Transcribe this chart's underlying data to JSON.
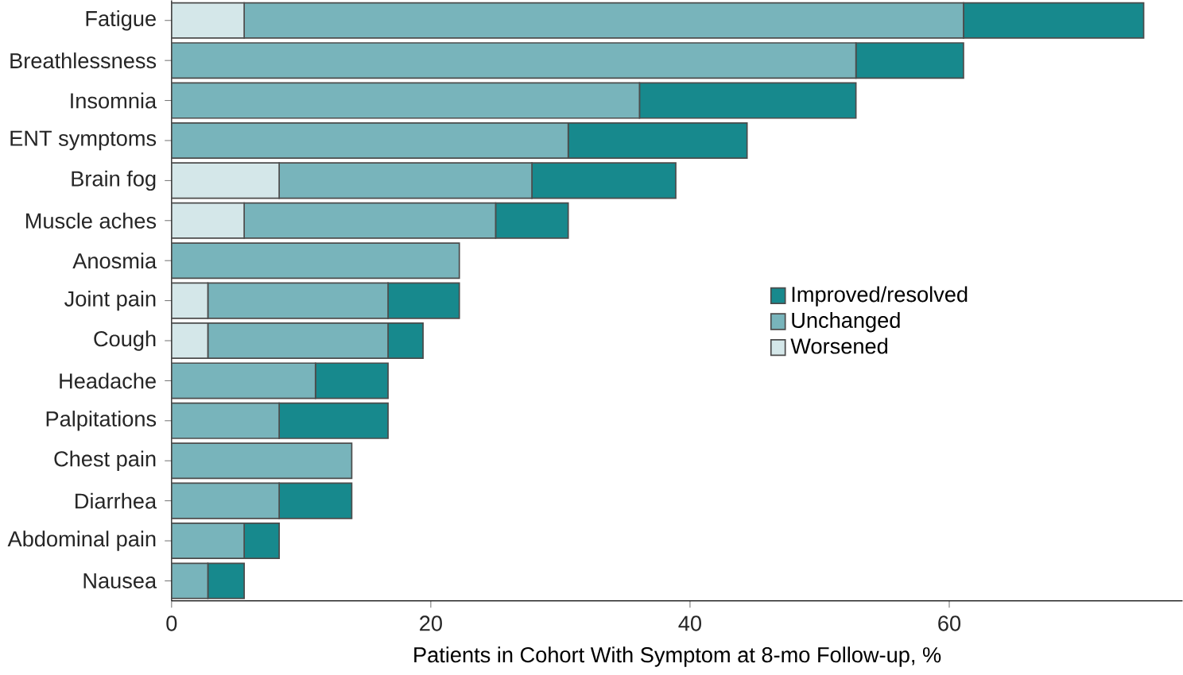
{
  "chart_data": {
    "type": "bar",
    "orientation": "horizontal",
    "stacked": true,
    "xlabel": "Patients in Cohort With Symptom at 8-mo Follow-up, %",
    "categories": [
      "Fatigue",
      "Breathlessness",
      "Insomnia",
      "ENT symptoms",
      "Brain fog",
      "Muscle aches",
      "Anosmia",
      "Joint pain",
      "Cough",
      "Headache",
      "Palpitations",
      "Chest pain",
      "Diarrhea",
      "Abdominal pain",
      "Nausea"
    ],
    "series": [
      {
        "name": "Worsened",
        "color": "#d4e7e9",
        "values": [
          5.6,
          0,
          0,
          0,
          8.3,
          5.6,
          0,
          2.8,
          2.8,
          0,
          0,
          0,
          0,
          0,
          0
        ]
      },
      {
        "name": "Unchanged",
        "color": "#78b4bb",
        "values": [
          55.5,
          52.8,
          36.1,
          30.6,
          19.5,
          19.4,
          22.2,
          13.9,
          13.9,
          11.1,
          8.3,
          13.9,
          8.3,
          5.6,
          2.8
        ]
      },
      {
        "name": "Improved/resolved",
        "color": "#17898d",
        "values": [
          13.9,
          8.3,
          16.7,
          13.8,
          11.1,
          5.6,
          0,
          5.5,
          2.7,
          5.6,
          8.4,
          0,
          5.6,
          2.7,
          2.8
        ]
      }
    ],
    "xlim": [
      0,
      78
    ],
    "xticks": [
      0,
      20,
      40,
      60
    ],
    "grid": false,
    "legend": "right"
  }
}
